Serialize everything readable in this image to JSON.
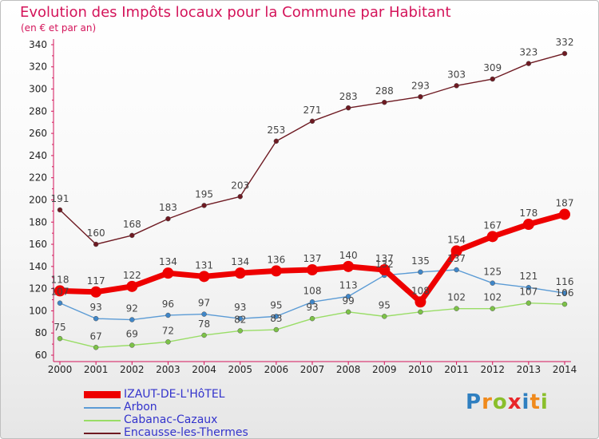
{
  "title": "Evolution des Impôts locaux pour la Commune par Habitant",
  "subtitle": "(en € et par an)",
  "logo": {
    "text": "Proxiti",
    "colors": [
      "#2f7fc0",
      "#f08a1c",
      "#8abf2b",
      "#e8262a",
      "#2f7fc0",
      "#f08a1c",
      "#8abf2b"
    ]
  },
  "chart_data": {
    "type": "line",
    "title": "Evolution des Impôts locaux pour la Commune par Habitant",
    "subtitle": "(en € et par an)",
    "xlabel": "",
    "ylabel": "",
    "ylim": [
      60,
      345
    ],
    "yticks": [
      60,
      80,
      100,
      120,
      140,
      160,
      180,
      200,
      220,
      240,
      260,
      280,
      300,
      320,
      340
    ],
    "grid": false,
    "legend_position": "bottom-left",
    "x": [
      "2000",
      "2001",
      "2002",
      "2003",
      "2004",
      "2005",
      "2006",
      "2007",
      "2008",
      "2009",
      "2010",
      "2011",
      "2012",
      "2013",
      "2014"
    ],
    "series": [
      {
        "name": "Encausse-les-Thermes",
        "color": "#6e1a22",
        "dot_color": "#6e1a22",
        "values": [
          191,
          160,
          168,
          183,
          195,
          203,
          253,
          271,
          283,
          288,
          293,
          303,
          309,
          323,
          332
        ],
        "labels": [
          "191",
          "160",
          "168",
          "183",
          "195",
          "203",
          "253",
          "271",
          "283",
          "288",
          "293",
          "303",
          "309",
          "323",
          "332"
        ]
      },
      {
        "name": "Cabanac-Cazaux",
        "color": "#99dd66",
        "dot_color": "#7cc247",
        "values": [
          75,
          67,
          69,
          72,
          78,
          82,
          83,
          93,
          99,
          95,
          99,
          102,
          102,
          107,
          106
        ],
        "labels": [
          "75",
          "67",
          "69",
          "72",
          "78",
          "82",
          "83",
          "93",
          "99",
          "95",
          "",
          "102",
          "102",
          "107",
          "106"
        ]
      },
      {
        "name": "Arbon",
        "color": "#5b9bd5",
        "dot_color": "#3f86c8",
        "values": [
          107,
          93,
          92,
          96,
          97,
          93,
          95,
          108,
          113,
          132,
          135,
          137,
          125,
          121,
          116
        ],
        "labels": [
          "107",
          "93",
          "92",
          "96",
          "97",
          "93",
          "95",
          "108",
          "113",
          "132",
          "135",
          "137",
          "125",
          "121",
          "116"
        ]
      },
      {
        "name": "IZAUT-DE-L'HôTEL",
        "color": "#ee0000",
        "dot_color": "#ee0000",
        "values": [
          118,
          117,
          122,
          134,
          131,
          134,
          136,
          137,
          140,
          137,
          108,
          154,
          167,
          178,
          187
        ],
        "labels": [
          "118",
          "117",
          "122",
          "134",
          "131",
          "134",
          "136",
          "137",
          "140",
          "137",
          "108",
          "154",
          "167",
          "178",
          "187"
        ]
      }
    ],
    "legend": [
      "IZAUT-DE-L'HôTEL",
      "Arbon",
      "Cabanac-Cazaux",
      "Encausse-les-Thermes"
    ]
  }
}
